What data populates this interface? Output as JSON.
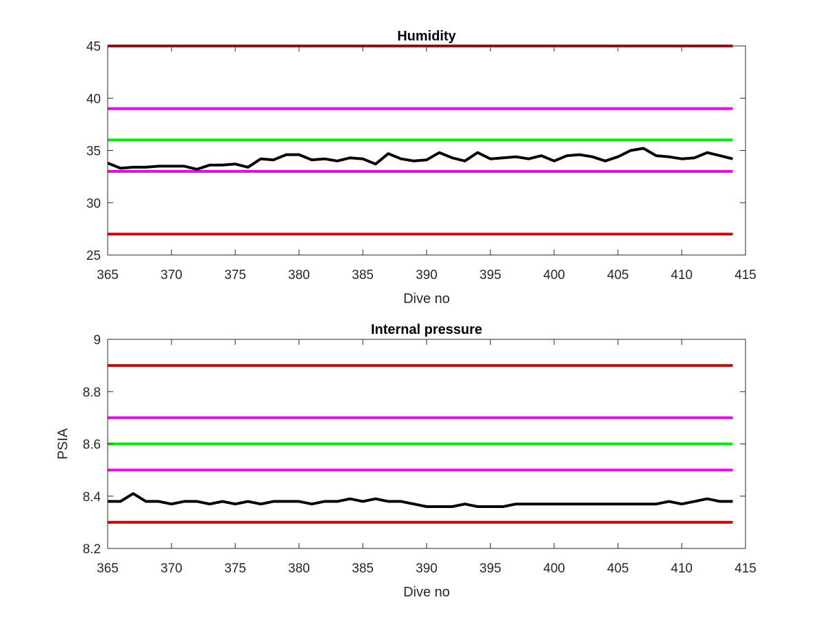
{
  "chart_data": [
    {
      "type": "line",
      "title": "Humidity",
      "xlabel": "Dive no",
      "ylabel": "",
      "xlim": [
        365,
        415
      ],
      "ylim": [
        25,
        45
      ],
      "xticks": [
        365,
        370,
        375,
        380,
        385,
        390,
        395,
        400,
        405,
        410,
        415
      ],
      "yticks": [
        25,
        30,
        35,
        40,
        45
      ],
      "grid": false,
      "legend": "none",
      "reference_lines": [
        {
          "y": 45,
          "x_range": [
            365,
            414
          ],
          "color": "#d40000"
        },
        {
          "y": 39,
          "x_range": [
            365,
            414
          ],
          "color": "#ee00ee"
        },
        {
          "y": 36,
          "x_range": [
            365,
            414
          ],
          "color": "#00ee00"
        },
        {
          "y": 33,
          "x_range": [
            365,
            414
          ],
          "color": "#ee00ee"
        },
        {
          "y": 27,
          "x_range": [
            365,
            414
          ],
          "color": "#d40000"
        }
      ],
      "series": [
        {
          "color": "#000000",
          "x": [
            365,
            366,
            367,
            368,
            369,
            370,
            371,
            372,
            373,
            374,
            375,
            376,
            377,
            378,
            379,
            380,
            381,
            382,
            383,
            384,
            385,
            386,
            387,
            388,
            389,
            390,
            391,
            392,
            393,
            394,
            395,
            396,
            397,
            398,
            399,
            400,
            401,
            402,
            403,
            404,
            405,
            406,
            407,
            408,
            409,
            410,
            411,
            412,
            413,
            414
          ],
          "y": [
            33.8,
            33.3,
            33.4,
            33.4,
            33.5,
            33.5,
            33.5,
            33.2,
            33.6,
            33.6,
            33.7,
            33.4,
            34.2,
            34.1,
            34.6,
            34.6,
            34.1,
            34.2,
            34.0,
            34.3,
            34.2,
            33.7,
            34.7,
            34.2,
            34.0,
            34.1,
            34.8,
            34.3,
            34.0,
            34.8,
            34.2,
            34.3,
            34.4,
            34.2,
            34.5,
            34.0,
            34.5,
            34.6,
            34.4,
            34.0,
            34.4,
            35.0,
            35.2,
            34.5,
            34.4,
            34.2,
            34.3,
            34.8,
            34.5,
            34.2
          ]
        }
      ]
    },
    {
      "type": "line",
      "title": "Internal pressure",
      "xlabel": "Dive no",
      "ylabel": "PSIA",
      "xlim": [
        365,
        415
      ],
      "ylim": [
        8.2,
        9.0
      ],
      "xticks": [
        365,
        370,
        375,
        380,
        385,
        390,
        395,
        400,
        405,
        410,
        415
      ],
      "yticks": [
        8.2,
        8.4,
        8.6,
        8.8,
        9.0
      ],
      "ytick_labels": [
        "8.2",
        "8.4",
        "8.6",
        "8.8",
        "9"
      ],
      "grid": false,
      "legend": "none",
      "reference_lines": [
        {
          "y": 8.9,
          "x_range": [
            365,
            414
          ],
          "color": "#d40000"
        },
        {
          "y": 8.7,
          "x_range": [
            365,
            414
          ],
          "color": "#ee00ee"
        },
        {
          "y": 8.6,
          "x_range": [
            365,
            414
          ],
          "color": "#00ee00"
        },
        {
          "y": 8.5,
          "x_range": [
            365,
            414
          ],
          "color": "#ee00ee"
        },
        {
          "y": 8.3,
          "x_range": [
            365,
            414
          ],
          "color": "#d40000"
        }
      ],
      "series": [
        {
          "color": "#000000",
          "x": [
            365,
            366,
            367,
            368,
            369,
            370,
            371,
            372,
            373,
            374,
            375,
            376,
            377,
            378,
            379,
            380,
            381,
            382,
            383,
            384,
            385,
            386,
            387,
            388,
            389,
            390,
            391,
            392,
            393,
            394,
            395,
            396,
            397,
            398,
            399,
            400,
            401,
            402,
            403,
            404,
            405,
            406,
            407,
            408,
            409,
            410,
            411,
            412,
            413,
            414
          ],
          "y": [
            8.38,
            8.38,
            8.41,
            8.38,
            8.38,
            8.37,
            8.38,
            8.38,
            8.37,
            8.38,
            8.37,
            8.38,
            8.37,
            8.38,
            8.38,
            8.38,
            8.37,
            8.38,
            8.38,
            8.39,
            8.38,
            8.39,
            8.38,
            8.38,
            8.37,
            8.36,
            8.36,
            8.36,
            8.37,
            8.36,
            8.36,
            8.36,
            8.37,
            8.37,
            8.37,
            8.37,
            8.37,
            8.37,
            8.37,
            8.37,
            8.37,
            8.37,
            8.37,
            8.37,
            8.38,
            8.37,
            8.38,
            8.39,
            8.38,
            8.38
          ]
        }
      ]
    }
  ]
}
